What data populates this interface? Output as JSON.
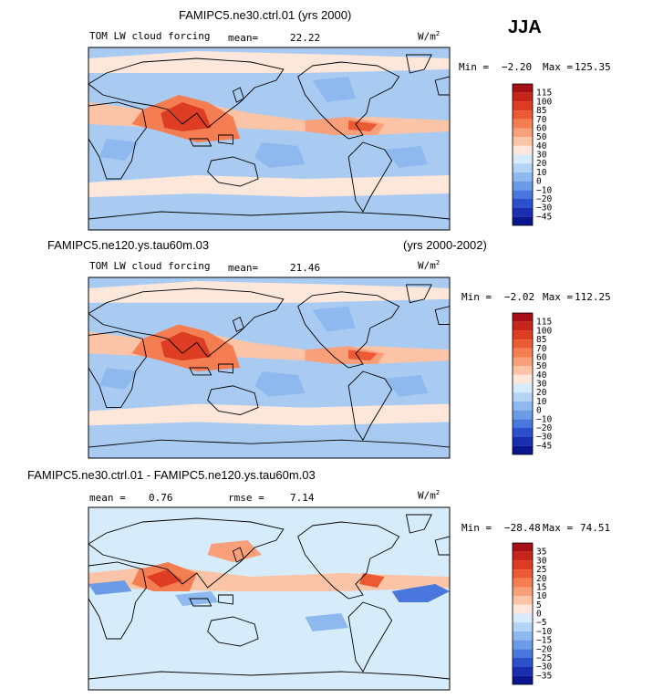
{
  "season": "JJA",
  "colors": {
    "ocean_pale": "#d6ecfa",
    "ocean_mid": "#a9cbf2",
    "land_line": "#000000"
  },
  "chart_data": [
    {
      "type": "heatmap",
      "title": "FAMIPC5.ne30.ctrl.01 (yrs 2000)",
      "variable": "TOM LW cloud forcing",
      "mean_label": "mean=",
      "mean": "22.22",
      "units": "W/m",
      "units_sup": "2",
      "min_label": "Min =",
      "min": "−2.20",
      "max_label": "Max =",
      "max": "125.35",
      "colorbar_levels": [
        "115",
        "100",
        "85",
        "70",
        "60",
        "50",
        "40",
        "30",
        "20",
        "10",
        "0",
        "−10",
        "−20",
        "−30",
        "−45"
      ],
      "colorbar_colors": [
        "#a50f15",
        "#c8251a",
        "#dd3e23",
        "#ec5a34",
        "#f57d52",
        "#f9a07a",
        "#fbc4a6",
        "#fde6da",
        "#d6ebfb",
        "#b4d4f6",
        "#8eb9ef",
        "#6b9be6",
        "#4a77dd",
        "#2c4fcc",
        "#1a2fb0",
        "#0a1590"
      ]
    },
    {
      "type": "heatmap",
      "title": "FAMIPC5.ne120.ys.tau60m.03",
      "title_right": "(yrs 2000-2002)",
      "variable": "TOM LW cloud forcing",
      "mean_label": "mean=",
      "mean": "21.46",
      "units": "W/m",
      "units_sup": "2",
      "min_label": "Min =",
      "min": "−2.02",
      "max_label": "Max =",
      "max": "112.25",
      "colorbar_levels": [
        "115",
        "100",
        "85",
        "70",
        "60",
        "50",
        "40",
        "30",
        "20",
        "10",
        "0",
        "−10",
        "−20",
        "−30",
        "−45"
      ],
      "colorbar_colors": [
        "#a50f15",
        "#c8251a",
        "#dd3e23",
        "#ec5a34",
        "#f57d52",
        "#f9a07a",
        "#fbc4a6",
        "#fde6da",
        "#d6ebfb",
        "#b4d4f6",
        "#8eb9ef",
        "#6b9be6",
        "#4a77dd",
        "#2c4fcc",
        "#1a2fb0",
        "#0a1590"
      ]
    },
    {
      "type": "heatmap",
      "title": "FAMIPC5.ne30.ctrl.01 - FAMIPC5.ne120.ys.tau60m.03",
      "mean_label": "mean =",
      "mean": "0.76",
      "rmse_label": "rmse =",
      "rmse": "7.14",
      "units": "W/m",
      "units_sup": "2",
      "min_label": "Min =",
      "min": "−28.48",
      "max_label": "Max =",
      "max": "74.51",
      "colorbar_levels": [
        "35",
        "30",
        "25",
        "20",
        "15",
        "10",
        "5",
        "0",
        "−5",
        "−10",
        "−15",
        "−20",
        "−25",
        "−30",
        "−35"
      ],
      "colorbar_colors": [
        "#a50f15",
        "#c8251a",
        "#dd3e23",
        "#ec5a34",
        "#f57d52",
        "#f9a07a",
        "#fbc4a6",
        "#fde6da",
        "#d6ebfb",
        "#b4d4f6",
        "#8eb9ef",
        "#6b9be6",
        "#4a77dd",
        "#2c4fcc",
        "#1a2fb0",
        "#0a1590"
      ]
    }
  ]
}
